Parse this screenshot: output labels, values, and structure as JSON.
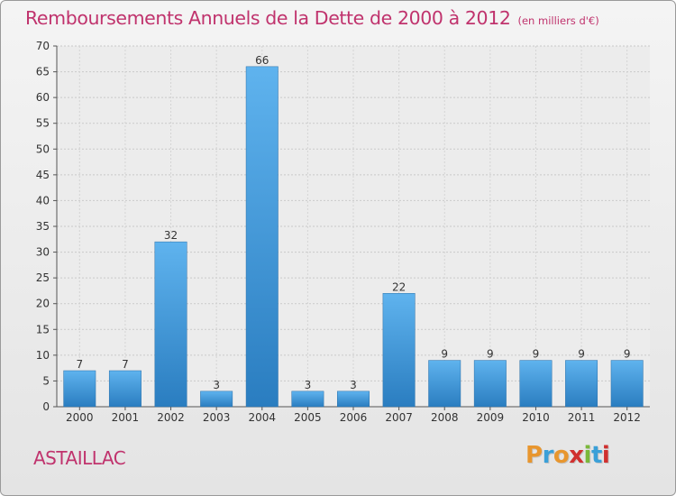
{
  "chart_data": {
    "type": "bar",
    "title": "Remboursements Annuels de la Dette de 2000 à 2012",
    "unit_note": "(en milliers d'€)",
    "categories": [
      "2000",
      "2001",
      "2002",
      "2003",
      "2004",
      "2005",
      "2006",
      "2007",
      "2008",
      "2009",
      "2010",
      "2011",
      "2012"
    ],
    "values": [
      7,
      7,
      32,
      3,
      66,
      3,
      3,
      22,
      9,
      9,
      9,
      9,
      9
    ],
    "ylim": [
      0,
      70
    ],
    "yticks": [
      0,
      5,
      10,
      15,
      20,
      25,
      30,
      35,
      40,
      45,
      50,
      55,
      60,
      65,
      70
    ],
    "grid": true,
    "bar_color": "#3a8fd6"
  },
  "footer": {
    "commune": "ASTAILLAC",
    "logo_letters": [
      "P",
      "r",
      "o",
      "x",
      "i",
      "t",
      "i"
    ],
    "logo_colors": [
      "#e8962e",
      "#3aa0d8",
      "#e8962e",
      "#d0302f",
      "#7ab83a",
      "#3aa0d8",
      "#d0302f"
    ]
  }
}
